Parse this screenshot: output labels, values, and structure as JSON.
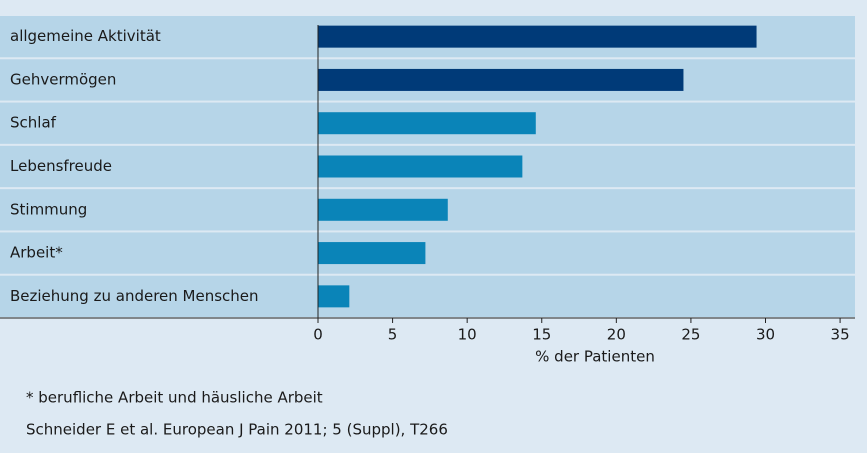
{
  "chart_data": {
    "type": "barh",
    "categories": [
      "allgemeine Aktivität",
      "Gehvermögen",
      "Schlaf",
      "Lebensfreude",
      "Stimmung",
      "Arbeit*",
      "Beziehung zu anderen Menschen"
    ],
    "values": [
      29.4,
      24.5,
      14.6,
      13.7,
      8.7,
      7.2,
      2.1
    ],
    "colors": [
      "#003a78",
      "#003a78",
      "#0a84b8",
      "#0a84b8",
      "#0a84b8",
      "#0a84b8",
      "#0a84b8"
    ],
    "xlim": [
      0,
      36
    ],
    "xticks": [
      0,
      5,
      10,
      15,
      20,
      25,
      30,
      35
    ],
    "xlabel": "% der Patienten",
    "notes": [
      "* berufliche Arbeit und häusliche Arbeit",
      "Schneider E et al. European J Pain 2011; 5 (Suppl), T266"
    ]
  }
}
